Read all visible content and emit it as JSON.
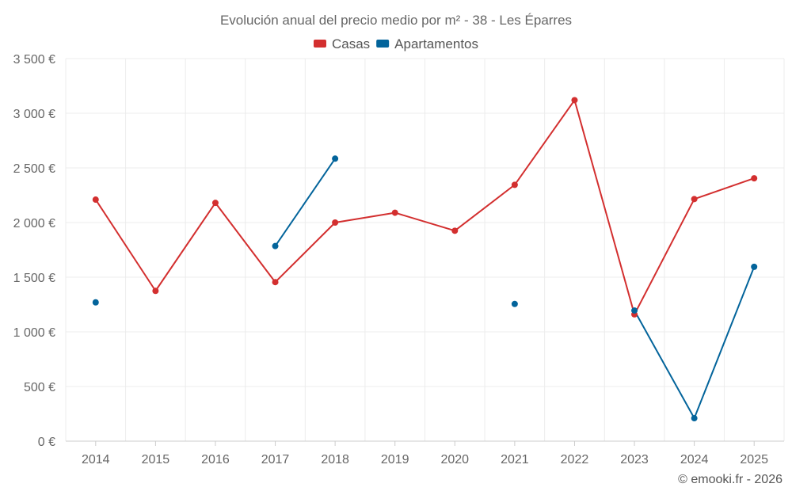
{
  "chart_data": {
    "type": "line",
    "title": "Evolución anual del precio medio por m² - 38 - Les Éparres",
    "categories": [
      "2014",
      "2015",
      "2016",
      "2017",
      "2018",
      "2019",
      "2020",
      "2021",
      "2022",
      "2023",
      "2024",
      "2025"
    ],
    "series": [
      {
        "name": "Casas",
        "color": "#d32f2f",
        "values": [
          2210,
          1375,
          2180,
          1455,
          2000,
          2090,
          1925,
          2345,
          3120,
          1160,
          2215,
          2405
        ]
      },
      {
        "name": "Apartamentos",
        "color": "#03649b",
        "values": [
          1270,
          null,
          null,
          1785,
          2585,
          null,
          null,
          1255,
          null,
          1195,
          210,
          1595
        ]
      }
    ],
    "ylim": [
      0,
      3500
    ],
    "yticks": [
      0,
      500,
      1000,
      1500,
      2000,
      2500,
      3000,
      3500
    ],
    "ytick_labels": [
      "0 €",
      "500 €",
      "1 000 €",
      "1 500 €",
      "2 000 €",
      "2 500 €",
      "3 000 €",
      "3 500 €"
    ],
    "xlabel": "",
    "ylabel": "",
    "grid": true,
    "legend_position": "top-center"
  },
  "credit": "© emooki.fr - 2026"
}
